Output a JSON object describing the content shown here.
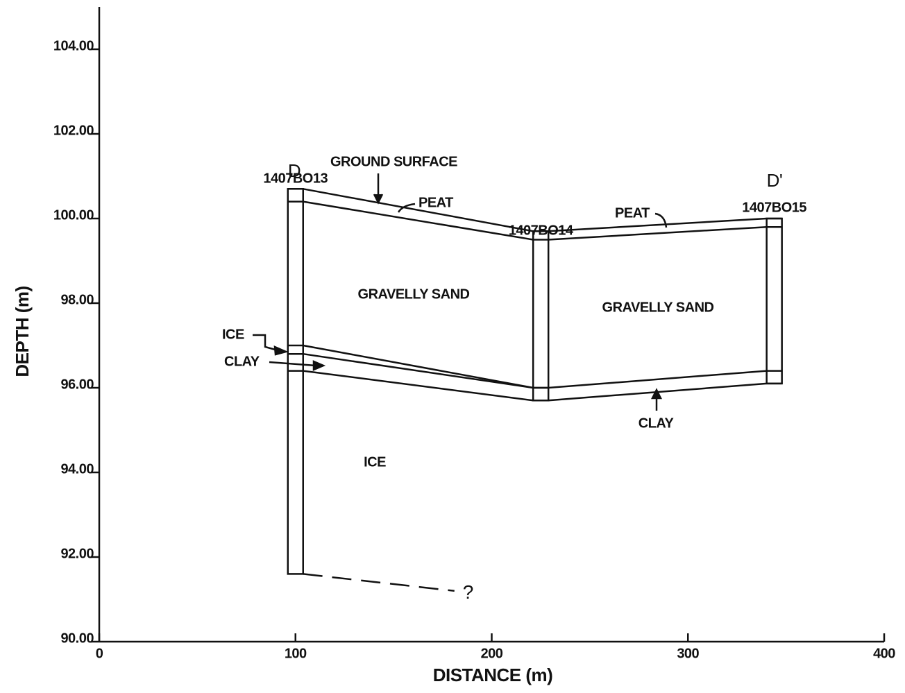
{
  "chart_data": {
    "type": "cross-section",
    "x_label": "DISTANCE (m)",
    "y_label": "DEPTH (m)",
    "xlim": [
      0,
      400
    ],
    "ylim": [
      90,
      105
    ],
    "xticks": [
      0,
      100,
      200,
      300,
      400
    ],
    "yticks": [
      {
        "value": 90,
        "label": "90.00"
      },
      {
        "value": 92,
        "label": "92.00"
      },
      {
        "value": 94,
        "label": "94.00"
      },
      {
        "value": 96,
        "label": "96.00"
      },
      {
        "value": 98,
        "label": "98.00"
      },
      {
        "value": 100,
        "label": "100.00"
      },
      {
        "value": 102,
        "label": "102.00"
      },
      {
        "value": 104,
        "label": "104.00"
      }
    ],
    "section_start": "D",
    "section_end": "D'",
    "boreholes": [
      {
        "name": "1407BO13",
        "x": 100,
        "top": 100.7,
        "bottom": 91.6
      },
      {
        "name": "1407BO14",
        "x": 225,
        "top": 99.7,
        "bottom": 95.7
      },
      {
        "name": "1407BO15",
        "x": 344,
        "top": 100.0,
        "bottom": 96.1
      }
    ],
    "interfaces": [
      [
        100.7,
        99.7,
        100.0
      ],
      [
        100.4,
        99.5,
        99.8
      ],
      [
        97.0,
        96.0,
        96.4
      ],
      [
        96.8,
        96.0,
        null
      ],
      [
        96.4,
        95.7,
        96.1
      ]
    ],
    "inferred": {
      "x": [
        100,
        181
      ],
      "depth": [
        91.6,
        91.2
      ],
      "label": "?"
    },
    "annotations": [
      "GROUND SURFACE",
      "PEAT",
      "PEAT",
      "GRAVELLY SAND",
      "GRAVELLY SAND",
      "ICE",
      "CLAY",
      "ICE",
      "CLAY"
    ]
  }
}
